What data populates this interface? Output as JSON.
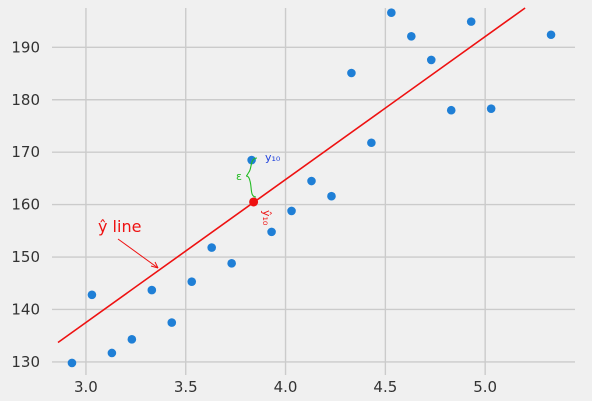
{
  "chart_data": {
    "type": "scatter",
    "title": "",
    "xlabel": "",
    "ylabel": "",
    "xlim": [
      2.83,
      5.45
    ],
    "ylim": [
      127.5,
      197.5
    ],
    "x_ticks": [
      3.0,
      3.5,
      4.0,
      4.5,
      5.0
    ],
    "x_tick_labels": [
      "3.0",
      "3.5",
      "4.0",
      "4.5",
      "5.0"
    ],
    "y_ticks": [
      130,
      140,
      150,
      160,
      170,
      180,
      190
    ],
    "y_tick_labels": [
      "130",
      "140",
      "150",
      "160",
      "170",
      "180",
      "190"
    ],
    "grid": true,
    "points": [
      {
        "x": 2.93,
        "y": 129.8
      },
      {
        "x": 3.03,
        "y": 142.8
      },
      {
        "x": 3.13,
        "y": 131.7
      },
      {
        "x": 3.23,
        "y": 134.3
      },
      {
        "x": 3.33,
        "y": 143.7
      },
      {
        "x": 3.43,
        "y": 137.5
      },
      {
        "x": 3.53,
        "y": 145.3
      },
      {
        "x": 3.63,
        "y": 151.8
      },
      {
        "x": 3.73,
        "y": 148.8
      },
      {
        "x": 3.83,
        "y": 168.5
      },
      {
        "x": 3.93,
        "y": 154.8
      },
      {
        "x": 4.03,
        "y": 158.8
      },
      {
        "x": 4.13,
        "y": 164.5
      },
      {
        "x": 4.23,
        "y": 161.6
      },
      {
        "x": 4.33,
        "y": 185.1
      },
      {
        "x": 4.43,
        "y": 171.8
      },
      {
        "x": 4.53,
        "y": 196.6
      },
      {
        "x": 4.63,
        "y": 192.1
      },
      {
        "x": 4.73,
        "y": 187.6
      },
      {
        "x": 4.83,
        "y": 178.0
      },
      {
        "x": 4.93,
        "y": 194.9
      },
      {
        "x": 5.03,
        "y": 178.3
      },
      {
        "x": 5.33,
        "y": 192.4
      }
    ],
    "regression_line": {
      "x": [
        2.86,
        5.2
      ],
      "y": [
        133.7,
        197.5
      ]
    },
    "highlighted_point": {
      "x": 3.84,
      "y": 160.5
    },
    "annotations": {
      "line_label": "ŷ line",
      "observed_label": "y₁₀",
      "predicted_label": "ŷ₁₀",
      "error_label": "ε"
    },
    "colors": {
      "points": "#1f7fd6",
      "line": "#ee1111",
      "highlight": "#ee1111",
      "error_brace": "#22bb22",
      "observed_label": "#2244dd",
      "background": "#f0f0f0",
      "grid": "#cbcbcb"
    }
  }
}
